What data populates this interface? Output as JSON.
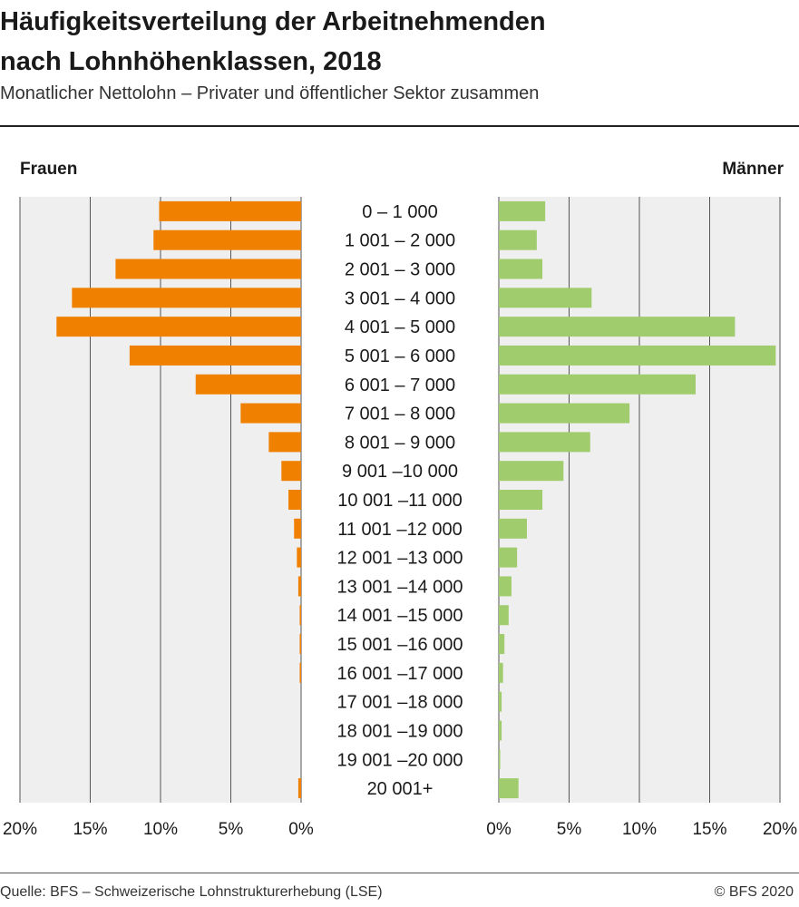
{
  "header": {
    "title": "Häufigkeitsverteilung der Arbeitnehmenden\nnach Lohnhöhenklassen, 2018",
    "subtitle": "Monatlicher Nettolohn – Privater und öffentlicher Sektor zusammen"
  },
  "footer": {
    "source": "Quelle: BFS – Schweizerische Lohnstrukturerhebung (LSE)",
    "copyright": "© BFS 2020"
  },
  "colors": {
    "frauen": "#f08000",
    "maenner": "#a0cc6e",
    "panel_bg": "#efefef",
    "grid": "#555555"
  },
  "chart_data": {
    "type": "bar",
    "orientation": "horizontal-pyramid",
    "categories": [
      "0 – 1 000",
      "1 001 – 2 000",
      "2 001 – 3 000",
      "3 001 – 4 000",
      "4 001 – 5 000",
      "5 001 – 6 000",
      "6 001 – 7 000",
      "7 001 – 8 000",
      "8 001 – 9 000",
      "9 001 –10 000",
      "10 001 –11 000",
      "11 001 –12 000",
      "12 001 –13 000",
      "13 001 –14 000",
      "14 001 –15 000",
      "15 001 –16 000",
      "16 001 –17 000",
      "17 001 –18 000",
      "18 001 –19 000",
      "19 001 –20 000",
      "20 001+"
    ],
    "series": [
      {
        "name": "Frauen",
        "side": "left",
        "values": [
          10.1,
          10.5,
          13.2,
          16.3,
          17.4,
          12.2,
          7.5,
          4.3,
          2.3,
          1.4,
          0.9,
          0.5,
          0.3,
          0.2,
          0.1,
          0.1,
          0.1,
          0.0,
          0.0,
          0.0,
          0.2
        ]
      },
      {
        "name": "Männer",
        "side": "right",
        "values": [
          3.3,
          2.7,
          3.1,
          6.6,
          16.8,
          19.7,
          14.0,
          9.3,
          6.5,
          4.6,
          3.1,
          2.0,
          1.3,
          0.9,
          0.7,
          0.4,
          0.3,
          0.2,
          0.2,
          0.1,
          1.4
        ]
      }
    ],
    "xlim": [
      0,
      20
    ],
    "xticks": [
      {
        "value": 20,
        "label": "20%"
      },
      {
        "value": 15,
        "label": "15%"
      },
      {
        "value": 10,
        "label": "10%"
      },
      {
        "value": 5,
        "label": "5%"
      },
      {
        "value": 0,
        "label": "0%"
      }
    ],
    "xticks_right": [
      {
        "value": 0,
        "label": "0%"
      },
      {
        "value": 5,
        "label": "5%"
      },
      {
        "value": 10,
        "label": "10%"
      },
      {
        "value": 15,
        "label": "15%"
      },
      {
        "value": 20,
        "label": "20%"
      }
    ],
    "grid": true,
    "side_labels": {
      "left": "Frauen",
      "right": "Männer"
    }
  }
}
